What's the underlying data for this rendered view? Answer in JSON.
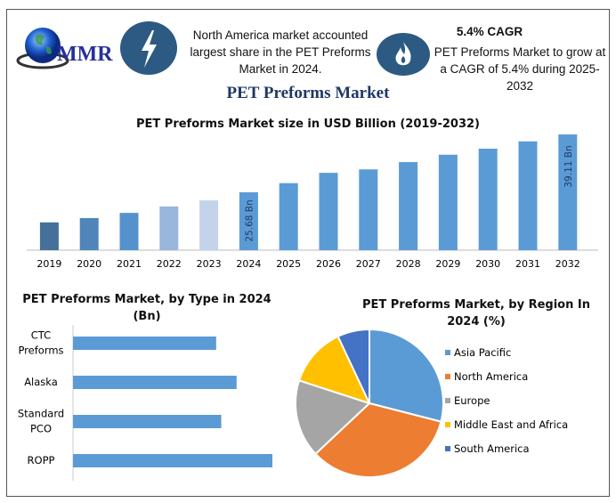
{
  "header": {
    "logo_text": "MMR",
    "icon1": "lightning-bolt-icon",
    "info1_text": "North America market accounted largest share in the PET Preforms Market in 2024.",
    "icon2": "flame-icon",
    "cagr_heading": "5.4% CAGR",
    "info2_text": "PET Preforms Market to grow at a CAGR of 5.4% during 2025-2032",
    "main_title": "PET Preforms Market",
    "accent_color": "#2c5a82"
  },
  "chart_data": [
    {
      "type": "bar",
      "title": "PET Preforms Market size in USD Billion (2019-2032)",
      "categories": [
        "2019",
        "2020",
        "2021",
        "2022",
        "2023",
        "2024",
        "2025",
        "2026",
        "2027",
        "2028",
        "2029",
        "2030",
        "2031",
        "2032"
      ],
      "values": [
        18.7,
        19.7,
        20.9,
        22.4,
        23.8,
        25.68,
        27.8,
        30.2,
        31.0,
        32.7,
        34.4,
        35.8,
        37.5,
        39.11
      ],
      "data_labels": {
        "2024": "25.68 Bn",
        "2032": "39.11 Bn"
      },
      "colors": [
        "#44709a",
        "#4f85b8",
        "#5592cd",
        "#99b6dc",
        "#c3d4ea",
        "#5b9bd5",
        "#5b9bd5",
        "#5b9bd5",
        "#5b9bd5",
        "#5b9bd5",
        "#5b9bd5",
        "#5b9bd5",
        "#5b9bd5",
        "#5b9bd5"
      ],
      "ylim": [
        12.25,
        40
      ],
      "grid": false
    },
    {
      "type": "bar",
      "orientation": "horizontal",
      "title": "PET Preforms Market, by Type in 2024 (Bn)",
      "categories": [
        "CTC Preforms",
        "Alaska",
        "Standard PCO",
        "ROPP"
      ],
      "values": [
        5.6,
        6.4,
        5.8,
        7.8
      ],
      "color": "#5b9bd5",
      "grid": false
    },
    {
      "type": "pie",
      "title": "PET Preforms Market, by Region In 2024 (%)",
      "labels": [
        "Asia Pacific",
        "North America",
        "Europe",
        "Middle East and Africa",
        "South America"
      ],
      "values": [
        29,
        34,
        17,
        13,
        7
      ],
      "colors": [
        "#5b9bd5",
        "#ed7d31",
        "#a5a5a5",
        "#ffc000",
        "#4472c4"
      ],
      "legend": "right"
    }
  ]
}
